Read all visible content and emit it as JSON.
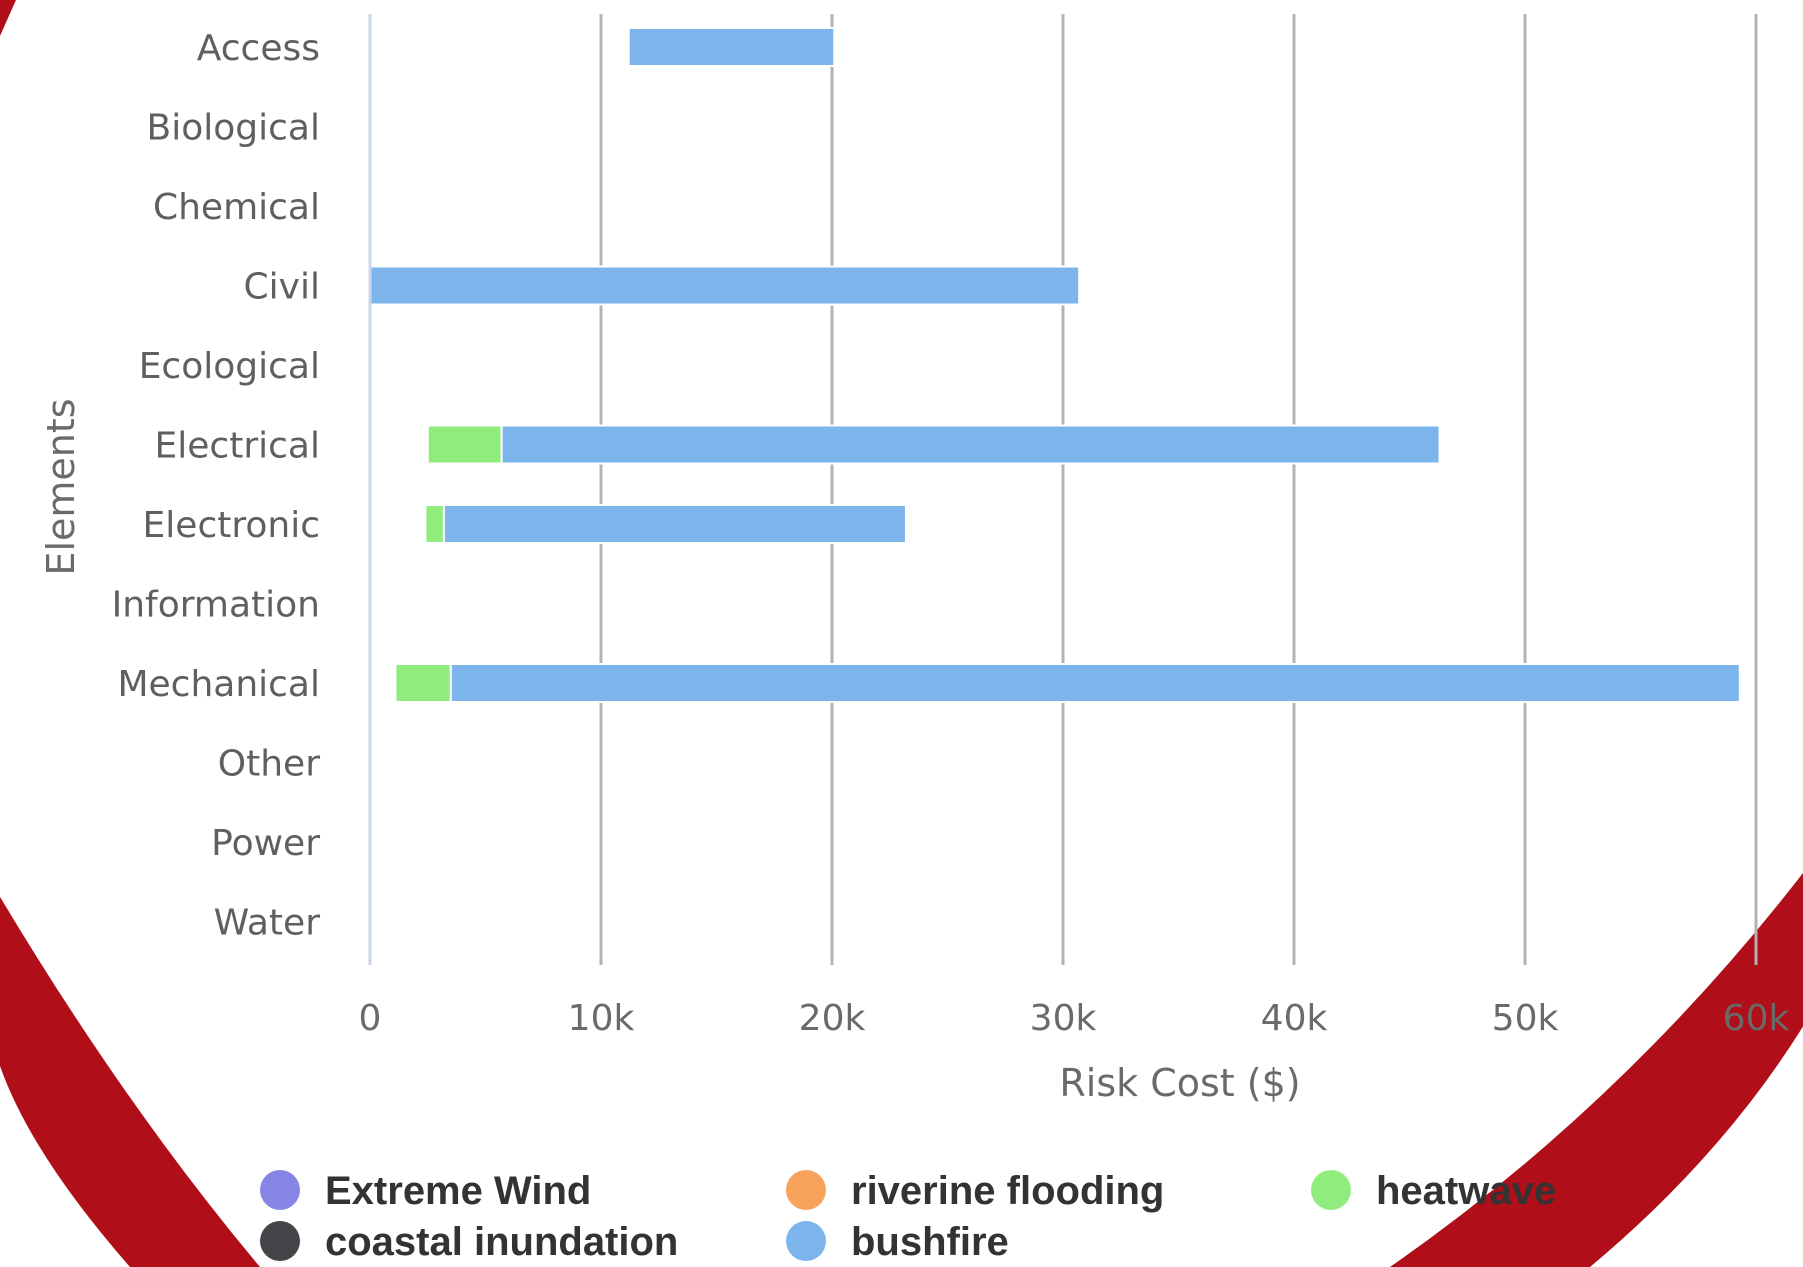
{
  "chart_data": {
    "type": "bar",
    "orientation": "horizontal",
    "stacked": true,
    "categories": [
      "Access",
      "Biological",
      "Chemical",
      "Civil",
      "Ecological",
      "Electrical",
      "Electronic",
      "Information",
      "Mechanical",
      "Other",
      "Power",
      "Water"
    ],
    "series": [
      {
        "name": "Extreme Wind",
        "color": "#8585e6",
        "values": [
          0,
          0,
          0,
          0,
          0,
          0,
          0,
          0,
          0,
          0,
          0,
          0
        ]
      },
      {
        "name": "coastal inundation",
        "color": "#434348",
        "values": [
          0,
          0,
          0,
          0,
          0,
          0,
          0,
          0,
          0,
          0,
          0,
          0
        ]
      },
      {
        "name": "riverine flooding",
        "color": "#f7a35c",
        "values": [
          0,
          0,
          0,
          0,
          0,
          0,
          0,
          0,
          0,
          0,
          0,
          0
        ]
      },
      {
        "name": "heatwave",
        "color": "#90ed7d",
        "values": [
          0,
          0,
          0,
          0,
          0,
          3200,
          800,
          0,
          2400,
          0,
          0,
          0
        ]
      },
      {
        "name": "bushfire",
        "color": "#7cb5ec",
        "values": [
          8900,
          0,
          0,
          30700,
          0,
          40600,
          20000,
          0,
          55800,
          0,
          0,
          0
        ]
      }
    ],
    "bar_starts": [
      11200,
      0,
      0,
      0,
      0,
      2500,
      2400,
      0,
      1100,
      0,
      0,
      0
    ],
    "xlabel": "Risk Cost ($)",
    "ylabel": "Elements",
    "xlim": [
      0,
      60000
    ],
    "x_ticks": [
      "0",
      "10k",
      "20k",
      "30k",
      "40k",
      "50k",
      "60k"
    ],
    "grid": true,
    "legend_position": "bottom",
    "legend": [
      {
        "name": "Extreme Wind",
        "color": "#8585e6"
      },
      {
        "name": "riverine flooding",
        "color": "#f7a35c"
      },
      {
        "name": "heatwave",
        "color": "#90ed7d"
      },
      {
        "name": "coastal inundation",
        "color": "#434348"
      },
      {
        "name": "bushfire",
        "color": "#7cb5ec"
      }
    ],
    "frame_color": "#b00f1a"
  }
}
